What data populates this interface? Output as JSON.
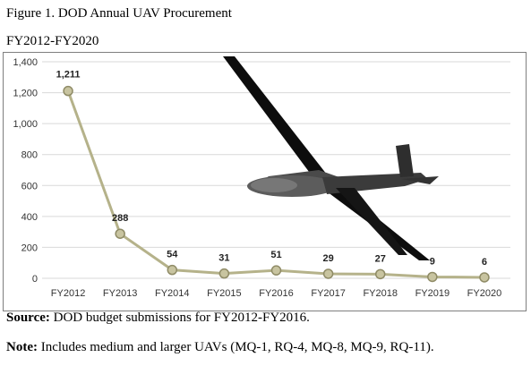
{
  "figure": {
    "title": "Figure 1. DOD Annual UAV Procurement",
    "subtitle": "FY2012-FY2020"
  },
  "chart_data": {
    "type": "line",
    "title": "Figure 1. DOD Annual UAV Procurement",
    "subtitle": "FY2012-FY2020",
    "xlabel": "",
    "ylabel": "",
    "categories": [
      "FY2012",
      "FY2013",
      "FY2014",
      "FY2015",
      "FY2016",
      "FY2017",
      "FY2018",
      "FY2019",
      "FY2020"
    ],
    "values": [
      1211,
      288,
      54,
      31,
      51,
      29,
      27,
      9,
      6
    ],
    "data_labels": [
      "1,211",
      "288",
      "54",
      "31",
      "51",
      "29",
      "27",
      "9",
      "6"
    ],
    "ylim": [
      0,
      1400
    ],
    "yticks": [
      0,
      200,
      400,
      600,
      800,
      1000,
      1200,
      1400
    ],
    "ytick_labels": [
      "0",
      "200",
      "400",
      "600",
      "800",
      "1,000",
      "1,200",
      "1,400"
    ],
    "grid": true,
    "legend": "none",
    "colors": {
      "line": "#b5b28a",
      "marker_fill": "#c8c4a0",
      "marker_stroke": "#8f8b66",
      "grid": "#d9d9d9"
    }
  },
  "footer": {
    "source_label": "Source:",
    "source_text": " DOD budget submissions for FY2012-FY2016.",
    "note_label": "Note:",
    "note_text": " Includes medium and larger UAVs (MQ-1, RQ-4, MQ-8, MQ-9, RQ-11)."
  }
}
